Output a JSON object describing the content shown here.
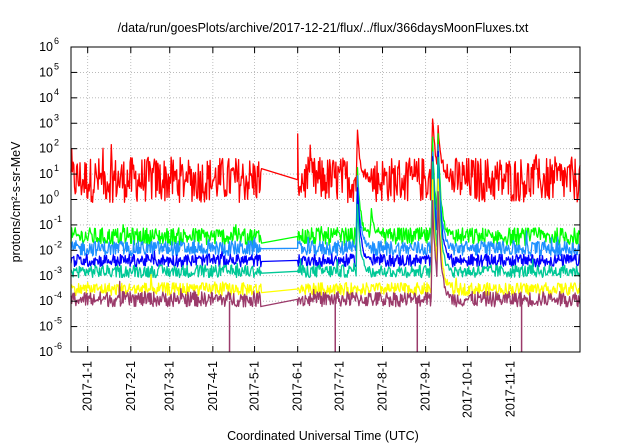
{
  "chart_data": {
    "type": "line",
    "title": "/data/run/goesPlots/archive/2017-12-21/flux/../flux/366daysMoonFluxes.txt",
    "xlabel": "Coordinated Universal Time (UTC)",
    "ylabel": "protons/cm²-s-sr-MeV",
    "y_scale": "log",
    "ylim": [
      1e-06,
      1000000.0
    ],
    "xlim": [
      "2016-12-20",
      "2017-12-21"
    ],
    "y_tick_exponents": [
      -6,
      -5,
      -4,
      -3,
      -2,
      -1,
      0,
      1,
      2,
      3,
      4,
      5,
      6
    ],
    "x_tick_labels": [
      "2017-1-1",
      "2017-2-1",
      "2017-3-1",
      "2017-4-1",
      "2017-5-1",
      "2017-6-1",
      "2017-7-1",
      "2017-8-1",
      "2017-9-1",
      "2017-10-1",
      "2017-11-1"
    ],
    "x_tick_dates": [
      "2017-01-01",
      "2017-02-01",
      "2017-03-01",
      "2017-04-01",
      "2017-05-01",
      "2017-06-01",
      "2017-07-01",
      "2017-08-01",
      "2017-09-01",
      "2017-10-01",
      "2017-11-01"
    ],
    "grid": true,
    "data_gap": [
      "2017-05-06",
      "2017-06-01"
    ],
    "series": [
      {
        "color": "#ff0000",
        "baseline": 6,
        "noise_decades": 0.9,
        "events": [
          {
            "date": "2017-07-14",
            "peak": 500
          },
          {
            "date": "2017-09-06",
            "peak": 2000
          },
          {
            "date": "2017-09-10",
            "peak": 900
          }
        ]
      },
      {
        "color": "#00ff00",
        "baseline": 0.035,
        "noise_decades": 0.35,
        "events": [
          {
            "date": "2017-07-14",
            "peak": 20
          },
          {
            "date": "2017-07-24",
            "peak": 0.4
          },
          {
            "date": "2017-09-06",
            "peak": 200
          },
          {
            "date": "2017-09-10",
            "peak": 300
          }
        ]
      },
      {
        "color": "#1e90ff",
        "baseline": 0.012,
        "noise_decades": 0.3,
        "events": [
          {
            "date": "2017-07-14",
            "peak": 8
          },
          {
            "date": "2017-09-06",
            "peak": 100
          },
          {
            "date": "2017-09-10",
            "peak": 150
          }
        ]
      },
      {
        "color": "#0000ff",
        "baseline": 0.004,
        "noise_decades": 0.25,
        "events": [
          {
            "date": "2017-07-14",
            "peak": 3
          },
          {
            "date": "2017-09-06",
            "peak": 60
          },
          {
            "date": "2017-09-10",
            "peak": 80
          }
        ]
      },
      {
        "color": "#00c896",
        "baseline": 0.0015,
        "noise_decades": 0.25,
        "events": [
          {
            "date": "2017-07-14",
            "peak": 0.5
          },
          {
            "date": "2017-09-06",
            "peak": 30
          },
          {
            "date": "2017-09-10",
            "peak": 40
          }
        ]
      },
      {
        "color": "#ffff00",
        "baseline": 0.0003,
        "noise_decades": 0.25,
        "events": [
          {
            "date": "2017-09-06",
            "peak": 5
          },
          {
            "date": "2017-09-10",
            "peak": 8
          }
        ]
      },
      {
        "color": "#9b3a6a",
        "baseline": 0.00012,
        "noise_decades": 0.3,
        "events": [
          {
            "date": "2017-09-06",
            "peak": 1
          },
          {
            "date": "2017-09-10",
            "peak": 2
          }
        ]
      }
    ]
  }
}
